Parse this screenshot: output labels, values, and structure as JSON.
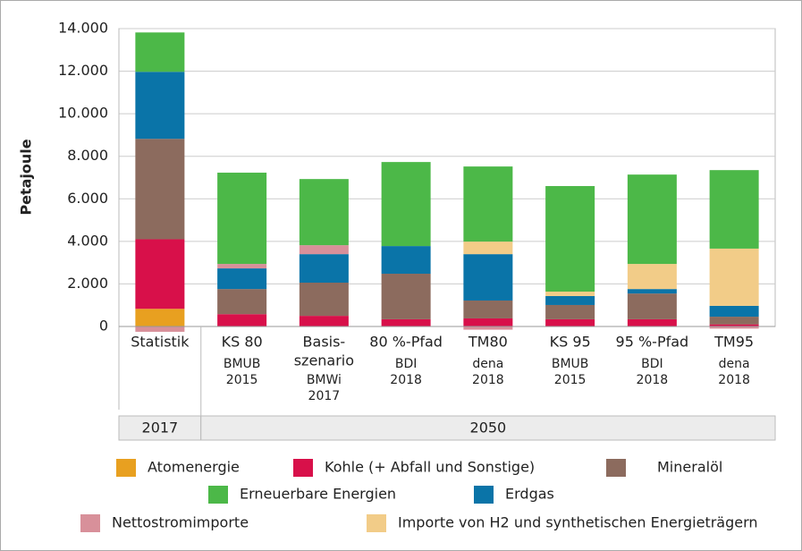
{
  "chart_data": {
    "type": "bar",
    "stacked": true,
    "y_label": "Petajoule",
    "categories": [
      [
        "Statistik"
      ],
      [
        "KS 80",
        "BMUB",
        "2015"
      ],
      [
        "Basis-",
        "szenario",
        "BMWi",
        "2017"
      ],
      [
        "80 %-Pfad",
        "BDI",
        "2018"
      ],
      [
        "TM80",
        "dena",
        "2018"
      ],
      [
        "KS 95",
        "BMUB",
        "2015"
      ],
      [
        "95 %-Pfad",
        "BDI",
        "2018"
      ],
      [
        "TM95",
        "dena",
        "2018"
      ]
    ],
    "groups": [
      {
        "label": "2017",
        "span": 1
      },
      {
        "label": "2050",
        "span": 7
      }
    ],
    "ylim": [
      0,
      14000
    ],
    "yticks": [
      0,
      {
        "value": 2000,
        "label": "2.000"
      },
      {
        "value": 4000,
        "label": "4.000"
      },
      {
        "value": 6000,
        "label": "6.000"
      },
      {
        "value": 8000,
        "label": "8.000"
      },
      {
        "value": 10000,
        "label": "10.000"
      },
      {
        "value": 12000,
        "label": "12.000"
      },
      {
        "value": 14000,
        "label": "14.000"
      }
    ],
    "grid": true,
    "series": [
      {
        "name": "Atomenergie",
        "color": "#e8a020",
        "values": [
          830,
          0,
          0,
          0,
          0,
          0,
          0,
          0
        ]
      },
      {
        "name": "Kohle (+ Abfall und Sonstige)",
        "color": "#d8104a",
        "values": [
          3270,
          580,
          500,
          340,
          380,
          340,
          340,
          100
        ]
      },
      {
        "name": "Mineralöl",
        "color": "#8c6b5e",
        "values": [
          4720,
          1180,
          1560,
          2140,
          840,
          670,
          1210,
          360
        ]
      },
      {
        "name": "Erneuerbare Energien",
        "color": "#4cb848",
        "values": [
          1850,
          4290,
          3110,
          3950,
          3530,
          4960,
          4200,
          3690
        ]
      },
      {
        "name": "Erdgas",
        "color": "#0a74a8",
        "values": [
          3150,
          970,
          1340,
          1300,
          2180,
          420,
          210,
          510
        ]
      },
      {
        "name": "Nettostromimporte",
        "color": "#d8909a",
        "values": [
          -250,
          210,
          420,
          0,
          -150,
          0,
          0,
          -100
        ]
      },
      {
        "name": "Importe von H2 und synthetischen Energieträgern",
        "color": "#f2cc88",
        "values": [
          0,
          0,
          0,
          0,
          590,
          210,
          1180,
          2690
        ]
      }
    ],
    "stack_order": [
      0,
      1,
      2,
      4,
      5,
      6,
      3
    ]
  }
}
